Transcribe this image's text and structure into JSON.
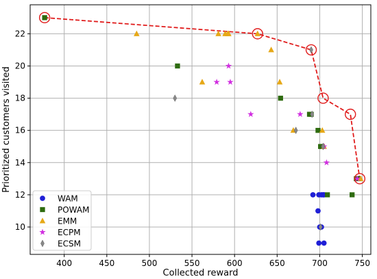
{
  "chart_data": {
    "type": "scatter",
    "xlabel": "Collected reward",
    "ylabel": "Prioritized customers visited",
    "xlim": [
      360,
      760
    ],
    "ylim": [
      8.3,
      23.8
    ],
    "xticks": [
      400,
      450,
      500,
      550,
      600,
      650,
      700,
      750
    ],
    "yticks": [
      10,
      12,
      14,
      16,
      18,
      20,
      22
    ],
    "grid": true,
    "legend_position": "bottom-left",
    "series": [
      {
        "name": "WAM",
        "marker": "circle",
        "color": "#1f1fd6",
        "points": [
          [
            692,
            12
          ],
          [
            699,
            12
          ],
          [
            702,
            12
          ],
          [
            704,
            12
          ],
          [
            705,
            12
          ],
          [
            698,
            11
          ],
          [
            700,
            10
          ],
          [
            702,
            10
          ],
          [
            699,
            9
          ],
          [
            705,
            9
          ]
        ]
      },
      {
        "name": "POWAM",
        "marker": "square",
        "color": "#2e6b0f",
        "points": [
          [
            377,
            23
          ],
          [
            533,
            20
          ],
          [
            654,
            18
          ],
          [
            688,
            17
          ],
          [
            690,
            17
          ],
          [
            698,
            16
          ],
          [
            701,
            15
          ],
          [
            703,
            15
          ],
          [
            738,
            12
          ],
          [
            709,
            12
          ],
          [
            743,
            13
          ],
          [
            746,
            13
          ]
        ]
      },
      {
        "name": "EMM",
        "marker": "triangle",
        "color": "#e6a817",
        "points": [
          [
            485,
            22
          ],
          [
            581,
            22
          ],
          [
            589,
            22
          ],
          [
            592,
            22
          ],
          [
            593,
            22
          ],
          [
            627,
            22
          ],
          [
            643,
            21
          ],
          [
            562,
            19
          ],
          [
            653,
            19
          ],
          [
            669,
            16
          ],
          [
            703,
            16
          ],
          [
            705,
            15
          ],
          [
            748,
            13
          ]
        ]
      },
      {
        "name": "ECPM",
        "marker": "star",
        "color": "#d12fe0",
        "points": [
          [
            593,
            20
          ],
          [
            579,
            19
          ],
          [
            595,
            19
          ],
          [
            619,
            17
          ],
          [
            677,
            17
          ],
          [
            705,
            15
          ],
          [
            708,
            14
          ],
          [
            744,
            13
          ]
        ]
      },
      {
        "name": "ECSM",
        "marker": "diamond",
        "color": "#888888",
        "points": [
          [
            530,
            18
          ],
          [
            690,
            21
          ],
          [
            672,
            16
          ],
          [
            691,
            17
          ],
          [
            704,
            15
          ],
          [
            701,
            10
          ]
        ]
      }
    ],
    "pareto_front": {
      "color": "#e01b1b",
      "points": [
        [
          377,
          23
        ],
        [
          627,
          22
        ],
        [
          690,
          21
        ],
        [
          704,
          18
        ],
        [
          736,
          17
        ],
        [
          747,
          13
        ]
      ]
    },
    "legend": [
      "WAM",
      "POWAM",
      "EMM",
      "ECPM",
      "ECSM"
    ]
  }
}
